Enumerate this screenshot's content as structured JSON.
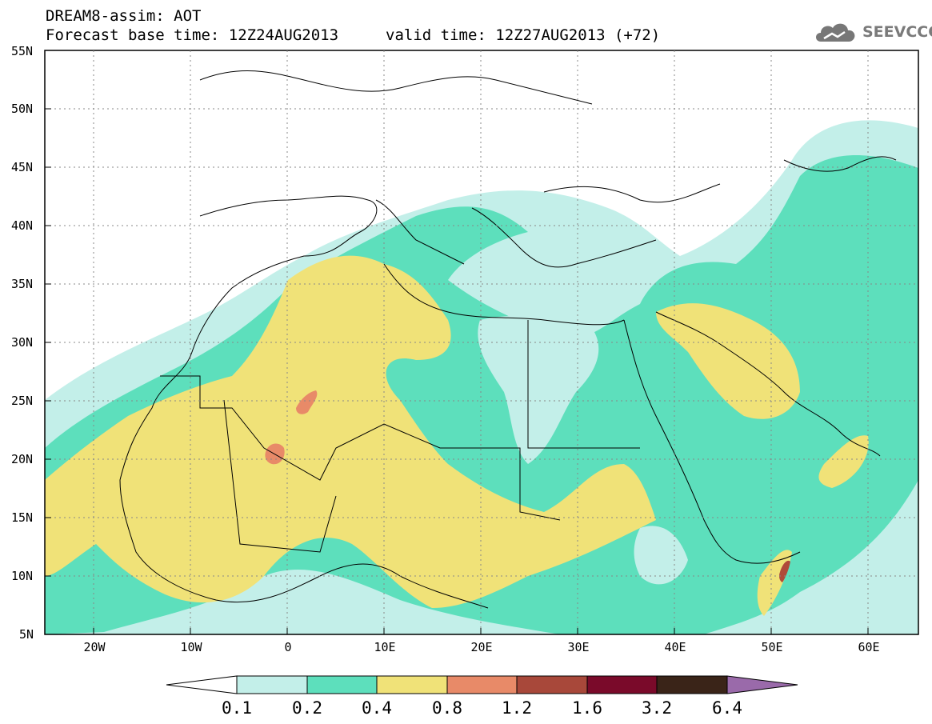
{
  "header": {
    "line1": "DREAM8-assim: AOT",
    "line2": "Forecast base time: 12Z24AUG2013",
    "line2b": "valid time: 12Z27AUG2013 (+72)"
  },
  "logo": {
    "text": "SEEVCCC",
    "icon": "cloud-icon"
  },
  "map": {
    "lat_labels": [
      "55N",
      "50N",
      "45N",
      "40N",
      "35N",
      "30N",
      "25N",
      "20N",
      "15N",
      "10N",
      "5N"
    ],
    "lon_labels": [
      "20W",
      "10W",
      "0",
      "10E",
      "20E",
      "30E",
      "40E",
      "50E",
      "60E"
    ],
    "fields": {
      "v01": "#c3efe9",
      "v02": "#5ddfbc",
      "v04": "#f0e278",
      "v08": "#e88a68",
      "v12": "#b04a3a"
    }
  },
  "colorbar": {
    "labels": [
      "0.1",
      "0.2",
      "0.4",
      "0.8",
      "1.2",
      "1.6",
      "3.2",
      "6.4"
    ],
    "colors": [
      "#ffffff",
      "#c3efe9",
      "#5ddfbc",
      "#f0e278",
      "#e88a68",
      "#a8483a",
      "#7a0a2a",
      "#3a2418",
      "#9a6aaa"
    ]
  }
}
